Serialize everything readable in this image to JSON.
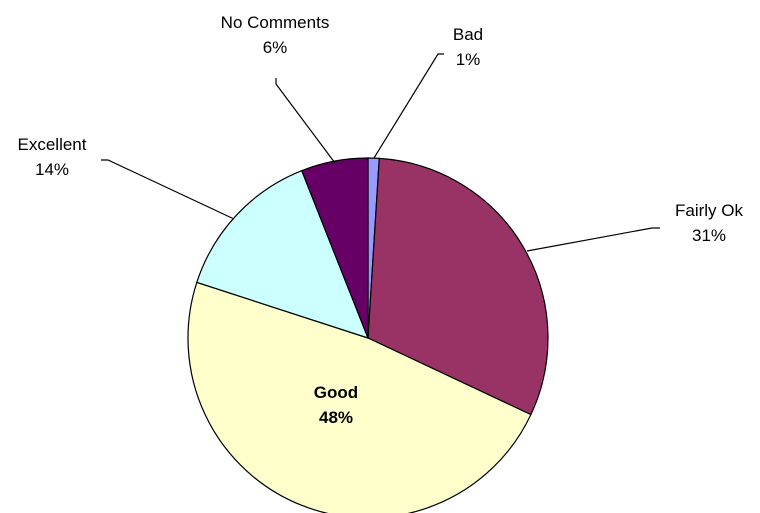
{
  "chart_data": {
    "type": "pie",
    "slices": [
      {
        "label": "Bad",
        "value": 1,
        "value_label": "1%",
        "color": "#9999ff"
      },
      {
        "label": "Fairly Ok",
        "value": 31,
        "value_label": "31%",
        "color": "#993366"
      },
      {
        "label": "Good",
        "value": 48,
        "value_label": "48%",
        "color": "#ffffcc"
      },
      {
        "label": "Excellent",
        "value": 14,
        "value_label": "14%",
        "color": "#ccffff"
      },
      {
        "label": "No Comments",
        "value": 6,
        "value_label": "6%",
        "color": "#660066"
      }
    ],
    "start_angle_deg": 0,
    "direction": "clockwise",
    "slice_border_color": "#000000",
    "label_placement": {
      "Bad": "outside",
      "Fairly Ok": "outside",
      "Good": "inside",
      "Excellent": "outside",
      "No Comments": "outside"
    },
    "legend": "none"
  }
}
